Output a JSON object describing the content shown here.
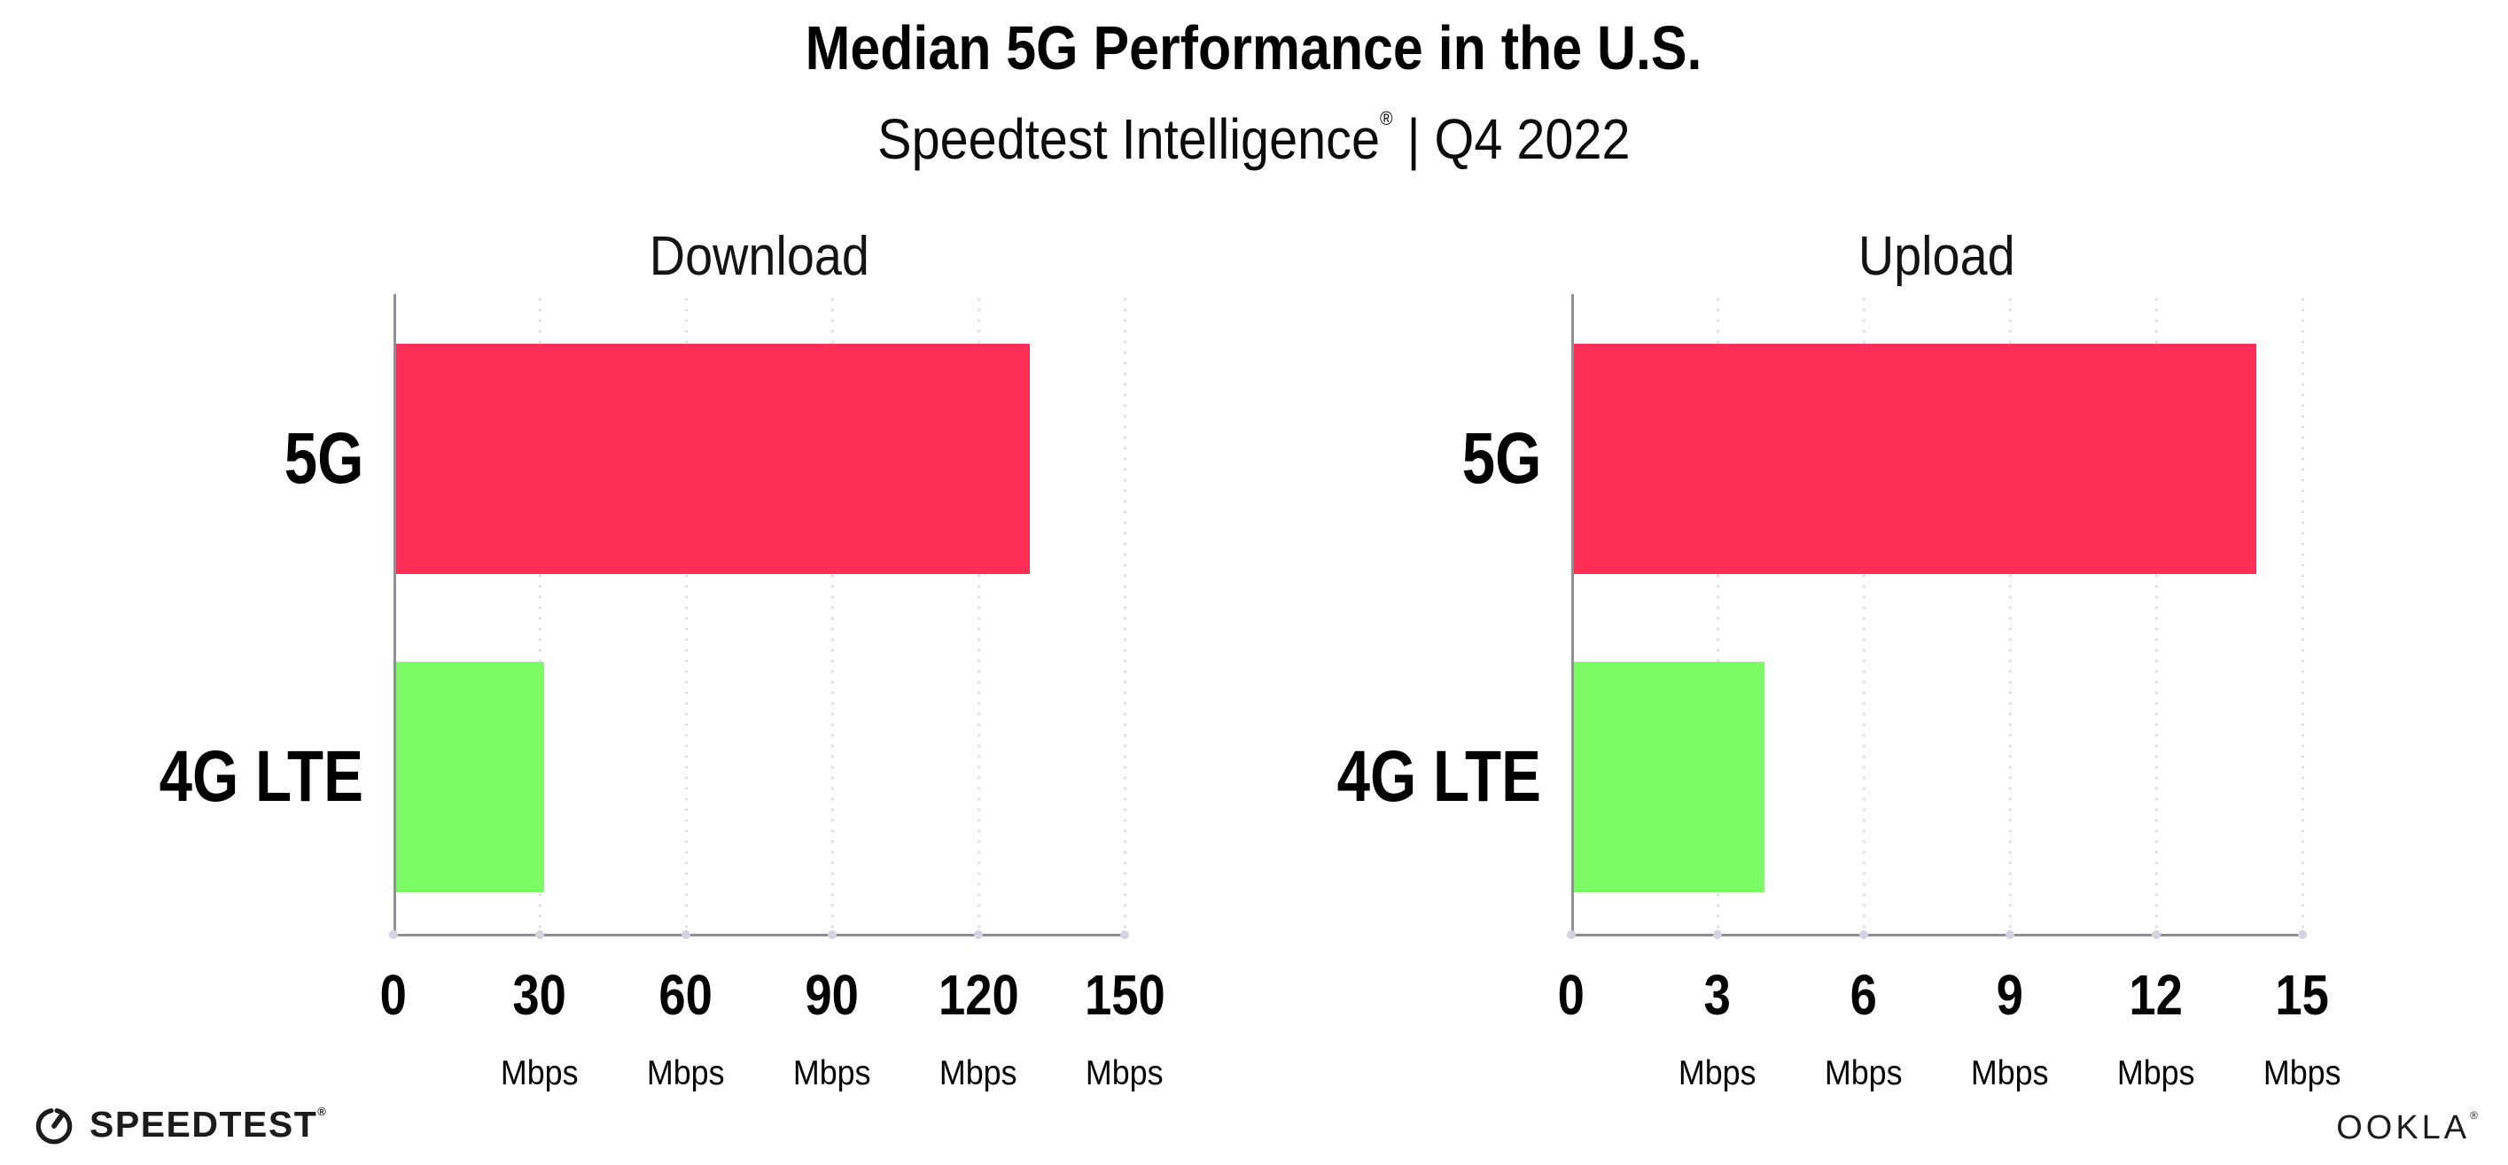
{
  "header": {
    "title": "Median 5G Performance in the U.S.",
    "subtitle_brand": "Speedtest Intelligence",
    "subtitle_reg": "®",
    "subtitle_rest": " | Q4 2022"
  },
  "chart_data": [
    {
      "type": "bar",
      "orientation": "horizontal",
      "title": "Download",
      "categories": [
        "5G",
        "4G LTE"
      ],
      "values": [
        130,
        30.3
      ],
      "unit": "Mbps",
      "xlabel": "",
      "ylabel": "",
      "xlim": [
        0,
        150
      ],
      "xticks": [
        0,
        30,
        60,
        90,
        120,
        150
      ],
      "bar_colors": [
        "#fe2e57",
        "#7dfb66"
      ],
      "grid": "dotted-vertical-gridlines",
      "legend": "none"
    },
    {
      "type": "bar",
      "orientation": "horizontal",
      "title": "Upload",
      "categories": [
        "5G",
        "4G LTE"
      ],
      "values": [
        14,
        3.9
      ],
      "unit": "Mbps",
      "xlabel": "",
      "ylabel": "",
      "xlim": [
        0,
        15
      ],
      "xticks": [
        0,
        3,
        6,
        9,
        12,
        15
      ],
      "bar_colors": [
        "#fe2e57",
        "#7dfb66"
      ],
      "grid": "dotted-vertical-gridlines",
      "legend": "none"
    }
  ],
  "colors": {
    "bar_5g": "#fe2e57",
    "bar_4g_lte": "#7dfb66",
    "axis": "#8f8f96",
    "gridline": "#dcdce8",
    "background": "#ffffff",
    "text": "#000000"
  },
  "icons": {
    "speedtest_gauge": "speedtest-gauge-icon"
  },
  "footer": {
    "speedtest_label": "SPEEDTEST",
    "speedtest_tm": "®",
    "ookla_label": "OOKLA",
    "ookla_tm": "®"
  }
}
